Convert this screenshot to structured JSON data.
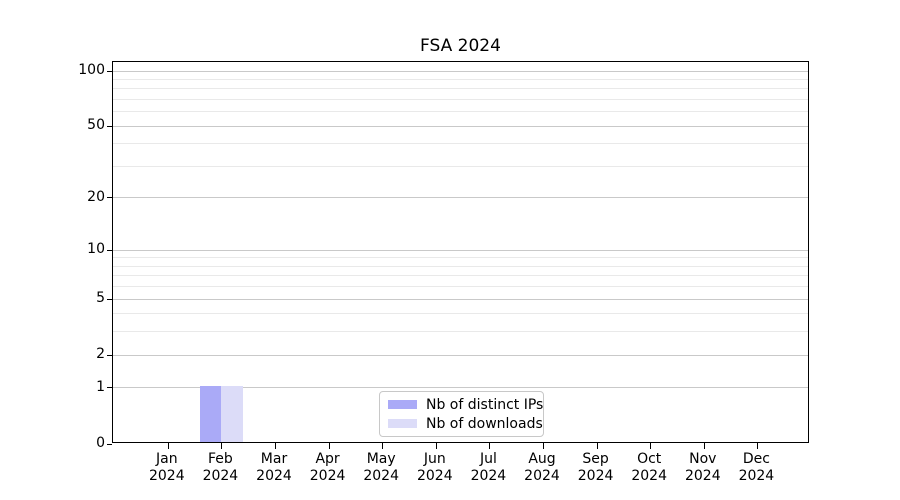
{
  "title": "FSA 2024",
  "chart_data": {
    "type": "bar",
    "title": "FSA 2024",
    "xlabel": "",
    "ylabel": "",
    "categories": [
      {
        "month": "Jan",
        "year": "2024"
      },
      {
        "month": "Feb",
        "year": "2024"
      },
      {
        "month": "Mar",
        "year": "2024"
      },
      {
        "month": "Apr",
        "year": "2024"
      },
      {
        "month": "May",
        "year": "2024"
      },
      {
        "month": "Jun",
        "year": "2024"
      },
      {
        "month": "Jul",
        "year": "2024"
      },
      {
        "month": "Aug",
        "year": "2024"
      },
      {
        "month": "Sep",
        "year": "2024"
      },
      {
        "month": "Oct",
        "year": "2024"
      },
      {
        "month": "Nov",
        "year": "2024"
      },
      {
        "month": "Dec",
        "year": "2024"
      }
    ],
    "series": [
      {
        "name": "Nb of distinct IPs",
        "color": "#aaaaf7",
        "values": [
          0,
          1,
          0,
          0,
          0,
          0,
          0,
          0,
          0,
          0,
          0,
          0
        ]
      },
      {
        "name": "Nb of downloads",
        "color": "#dcdcf8",
        "values": [
          0,
          1,
          0,
          0,
          0,
          0,
          0,
          0,
          0,
          0,
          0,
          0
        ]
      }
    ],
    "y_axis": {
      "scale": "log1p",
      "ylim": [
        0,
        112
      ],
      "major_ticks": [
        0,
        1,
        2,
        5,
        10,
        20,
        50,
        100
      ],
      "minor_gridlines": [
        3,
        4,
        6,
        7,
        8,
        9,
        30,
        40,
        60,
        70,
        80,
        90
      ]
    },
    "grid": "horizontal-only",
    "legend_position": "lower center-right inside plot",
    "colors": {
      "axis": "#000000",
      "major_grid": "#c9c9c9",
      "minor_grid": "#e9e9e9",
      "background": "#ffffff"
    }
  }
}
